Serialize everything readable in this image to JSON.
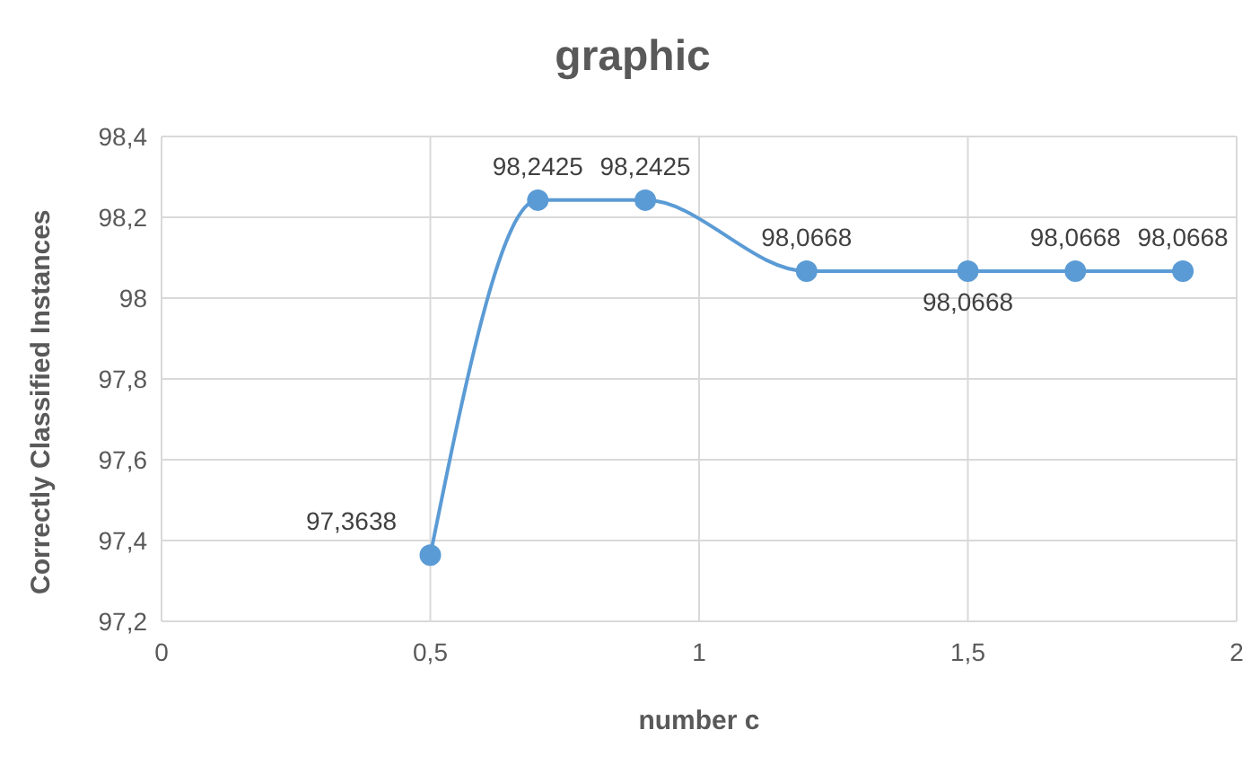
{
  "chart_data": {
    "type": "line",
    "title": "graphic",
    "xlabel": "number c",
    "ylabel": "Correctly Classified Instances",
    "x": [
      0.5,
      0.7,
      0.9,
      1.2,
      1.5,
      1.7,
      1.9
    ],
    "series": [
      {
        "color": "#5b9bd5",
        "values": [
          97.3638,
          98.2425,
          98.2425,
          98.0668,
          98.0668,
          98.0668,
          98.0668
        ],
        "value_labels": [
          "97,3638",
          "98,2425",
          "98,2425",
          "98,0668",
          "98,0668",
          "98,0668",
          "98,0668"
        ]
      }
    ],
    "xlim": [
      0,
      2
    ],
    "xticks": [
      0,
      {
        "value": 0.5,
        "label": "0,5"
      },
      1,
      {
        "value": 1.5,
        "label": "1,5"
      },
      2
    ],
    "ylim": [
      97.2,
      98.4
    ],
    "yticks": [
      {
        "value": 97.2,
        "label": "97,2"
      },
      {
        "value": 97.4,
        "label": "97,4"
      },
      {
        "value": 97.6,
        "label": "97,6"
      },
      {
        "value": 97.8,
        "label": "97,8"
      },
      98,
      {
        "value": 98.2,
        "label": "98,2"
      },
      {
        "value": 98.4,
        "label": "98,4"
      }
    ],
    "grid": true,
    "marker": "circle",
    "line_style": "solid",
    "legend": false
  }
}
